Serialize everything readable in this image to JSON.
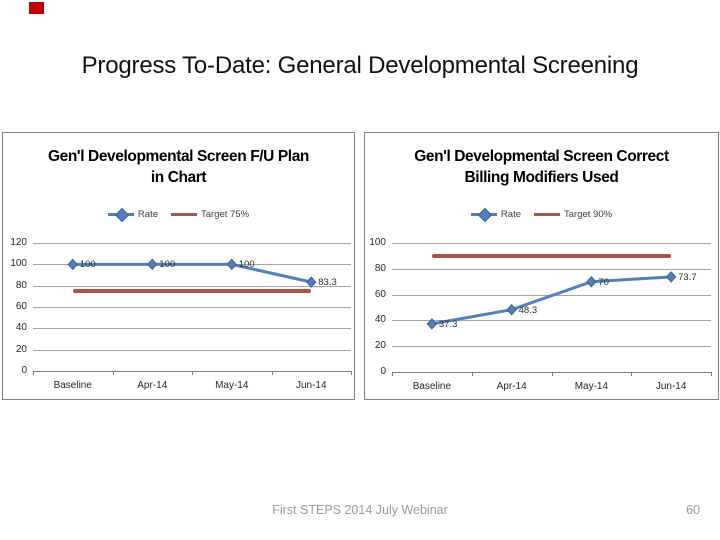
{
  "slide": {
    "title": "Progress To-Date: General Developmental Screening",
    "footer": "First STEPS 2014 July Webinar",
    "page_number": "60",
    "marker_color": "#c00000"
  },
  "colors": {
    "rate_blue": "#4f81bd",
    "rate_blue_edge": "#38618e",
    "target_red": "#a8514d"
  },
  "chart_data": [
    {
      "type": "line",
      "title": "Gen'l Developmental Screen F/U Plan in Chart",
      "title_lines": [
        "Gen'l Developmental Screen F/U Plan",
        "in Chart"
      ],
      "categories": [
        "Baseline",
        "Apr-14",
        "May-14",
        "Jun-14"
      ],
      "series": [
        {
          "name": "Rate",
          "values": [
            100,
            100,
            100,
            83.3
          ],
          "color": "#4f81bd",
          "marker": "diamond"
        },
        {
          "name": "Target 75%",
          "values": [
            75,
            75,
            75,
            75
          ],
          "color": "#a8514d",
          "marker": "none"
        }
      ],
      "data_labels": [
        "100",
        "100",
        "100",
        "83.3"
      ],
      "xlabel": "",
      "ylabel": "",
      "ylim": [
        0,
        120
      ],
      "yticks": [
        0,
        20,
        40,
        60,
        80,
        100,
        120
      ],
      "grid": true,
      "legend_position": "top"
    },
    {
      "type": "line",
      "title": "Gen'l Developmental Screen Correct Billing Modifiers Used",
      "title_lines": [
        "Gen'l Developmental Screen Correct",
        "Billing Modifiers Used"
      ],
      "categories": [
        "Baseline",
        "Apr-14",
        "May-14",
        "Jun-14"
      ],
      "series": [
        {
          "name": "Rate",
          "values": [
            37.3,
            48.3,
            70,
            73.7
          ],
          "color": "#4f81bd",
          "marker": "diamond"
        },
        {
          "name": "Target 90%",
          "values": [
            90,
            90,
            90,
            90
          ],
          "color": "#a8514d",
          "marker": "none"
        }
      ],
      "data_labels": [
        "37.3",
        "48.3",
        "70",
        "73.7"
      ],
      "xlabel": "",
      "ylabel": "",
      "ylim": [
        0,
        100
      ],
      "yticks": [
        0,
        20,
        40,
        60,
        80,
        100
      ],
      "grid": true,
      "legend_position": "top"
    }
  ]
}
